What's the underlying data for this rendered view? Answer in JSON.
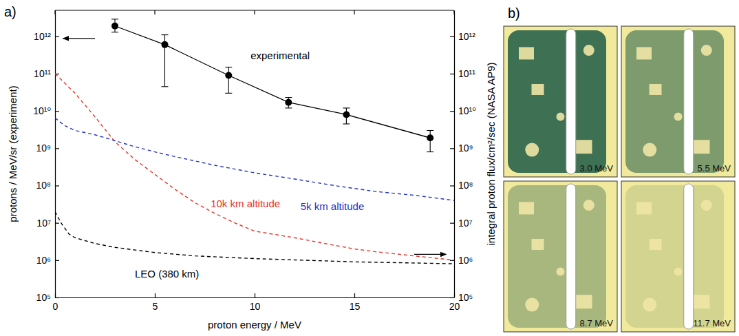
{
  "chart_data": [
    {
      "type": "line",
      "title": "a)",
      "x_label": "proton energy / MeV",
      "y_label": "protons / MeV/sr (experiment)",
      "y2_label": "integral proton flux/cm²/sec (NASA AP9)",
      "log": "y",
      "grid": false,
      "xlim": [
        0,
        20
      ],
      "xticks": [
        0,
        5,
        10,
        15,
        20
      ],
      "ylim": [
        100000,
        5000000000000
      ],
      "yticks": [
        {
          "value": 100000,
          "label": "10⁵"
        },
        {
          "value": 1000000,
          "label": "10⁶"
        },
        {
          "value": 10000000,
          "label": "10⁷"
        },
        {
          "value": 100000000,
          "label": "10⁸"
        },
        {
          "value": 1000000000,
          "label": "10⁹"
        },
        {
          "value": 10000000000,
          "label": "10¹⁰"
        },
        {
          "value": 100000000000,
          "label": "10¹¹"
        },
        {
          "value": 1000000000000,
          "label": "10¹²"
        }
      ],
      "y2lim": [
        100000,
        5000000000000
      ],
      "y2ticks": [
        {
          "value": 100000,
          "label": "10⁵"
        },
        {
          "value": 1000000,
          "label": "10⁶"
        },
        {
          "value": 10000000,
          "label": "10⁷"
        },
        {
          "value": 100000000,
          "label": "10⁸"
        },
        {
          "value": 1000000000,
          "label": "10⁹"
        },
        {
          "value": 10000000000,
          "label": "10¹⁰"
        },
        {
          "value": 100000000000,
          "label": "10¹¹"
        },
        {
          "value": 1000000000000,
          "label": "10¹²"
        }
      ],
      "series": [
        {
          "name": "experimental",
          "color": "#000000",
          "marker": "circle",
          "line_style": "solid",
          "x": [
            3.0,
            5.5,
            8.7,
            11.7,
            14.6,
            18.8
          ],
          "values": [
            1900000000000.0,
            600000000000.0,
            90000000000.0,
            17000000000.0,
            8000000000.0,
            1900000000.0
          ],
          "error_low": [
            1300000000000.0,
            45000000000.0,
            30000000000.0,
            12000000000.0,
            4500000000.0,
            800000000.0
          ],
          "error_high": [
            2900000000000.0,
            1100000000000.0,
            150000000000.0,
            23000000000.0,
            12000000000.0,
            3000000000.0
          ]
        },
        {
          "name": "10k km altitude",
          "color": "#e8332a",
          "marker": "none",
          "line_style": "dashed",
          "axis": "y2",
          "x": [
            0,
            1,
            2,
            3,
            4,
            5,
            6,
            7,
            8,
            9,
            10,
            12,
            14,
            15,
            16,
            18,
            20
          ],
          "values": [
            100000000000.0,
            30000000000.0,
            7000000000.0,
            1500000000.0,
            500000000.0,
            200000000.0,
            80000000.0,
            35000000.0,
            18000000.0,
            10000000.0,
            6000000.0,
            4000000.0,
            2500000.0,
            2000000.0,
            1700000.0,
            1300000.0,
            1000000.0
          ]
        },
        {
          "name": "5k km altitude",
          "color": "#2233cc",
          "marker": "none",
          "line_style": "dashed",
          "axis": "y2",
          "x": [
            0,
            0.5,
            1,
            2,
            3,
            4,
            5,
            6,
            8,
            10,
            12,
            14,
            16,
            18,
            20
          ],
          "values": [
            6500000000.0,
            4000000000.0,
            3000000000.0,
            2300000000.0,
            1600000000.0,
            1100000000.0,
            800000000.0,
            600000000.0,
            350000000.0,
            220000000.0,
            150000000.0,
            100000000.0,
            70000000.0,
            55000000.0,
            40000000.0
          ]
        },
        {
          "name": "LEO (380 km)",
          "color": "#000000",
          "marker": "none",
          "line_style": "dashed",
          "axis": "y2",
          "x": [
            0,
            0.3,
            0.7,
            1,
            2,
            3,
            5,
            7,
            10,
            15,
            20
          ],
          "values": [
            20000000.0,
            10000000.0,
            5000000.0,
            4000000.0,
            2800000.0,
            2200000.0,
            1600000.0,
            1300000.0,
            1100000.0,
            900000.0,
            800000.0
          ]
        }
      ]
    },
    {
      "type": "image_grid",
      "title": "b)",
      "images": [
        {
          "label": "3.0 MeV"
        },
        {
          "label": "5.5 MeV"
        },
        {
          "label": "8.7 MeV"
        },
        {
          "label": "11.7 MeV"
        }
      ]
    }
  ]
}
